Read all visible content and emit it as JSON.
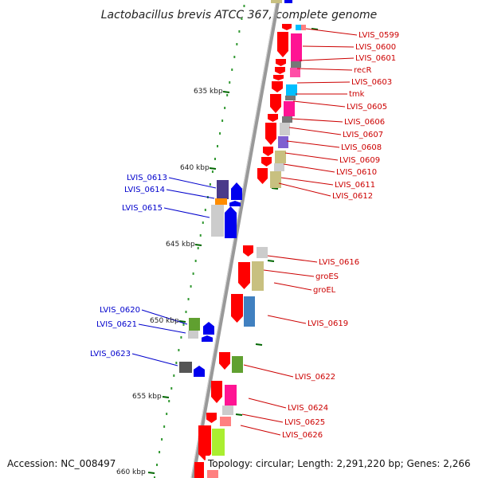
{
  "title": "Lactobacillus brevis ATCC 367, complete genome",
  "footer": {
    "accession": "Accession: NC_008497",
    "topology": "Topology: circular; Length: 2,291,220 bp; Genes: 2,266"
  },
  "colors": {
    "forward_label": "#cc0000",
    "reverse_label": "#0000cc",
    "backbone": "#999999",
    "tick": "#006600"
  },
  "scale": {
    "ticks": [
      "635 kbp",
      "640 kbp",
      "645 kbp",
      "650 kbp",
      "655 kbp",
      "660 kbp"
    ]
  },
  "forward_labels": [
    "LVIS_0599",
    "LVIS_0600",
    "LVIS_0601",
    "recR",
    "LVIS_0603",
    "tmk",
    "LVIS_0605",
    "LVIS_0606",
    "LVIS_0607",
    "LVIS_0608",
    "LVIS_0609",
    "LVIS_0610",
    "LVIS_0611",
    "LVIS_0612",
    "LVIS_0616",
    "groES",
    "groEL",
    "LVIS_0619",
    "LVIS_0622",
    "LVIS_0624",
    "LVIS_0625",
    "LVIS_0626"
  ],
  "reverse_labels": [
    "LVIS_0613",
    "LVIS_0614",
    "LVIS_0615",
    "LVIS_0620",
    "LVIS_0621",
    "LVIS_0623"
  ]
}
